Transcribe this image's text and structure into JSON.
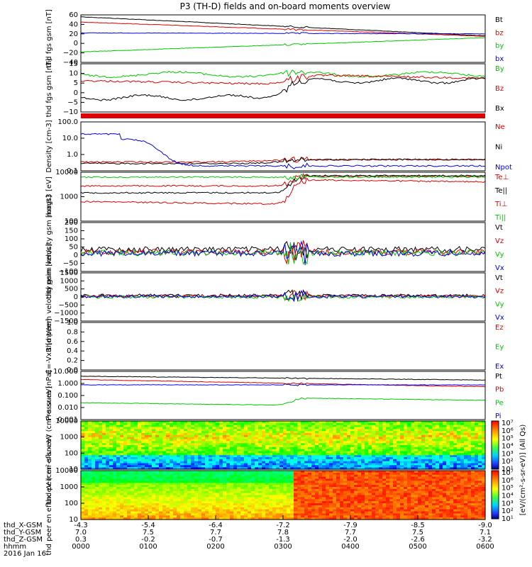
{
  "title": "P3 (TH-D) fields and on-board moments overview",
  "colors": {
    "black": "#000000",
    "red": "#e00000",
    "green": "#00c800",
    "blue": "#0000e0"
  },
  "time_axis": {
    "ticks": [
      "0000",
      "0100",
      "0200",
      "0300",
      "0400",
      "0500",
      "0600"
    ],
    "rows": [
      {
        "label": "thd_X-GSM",
        "values": [
          "-4.3",
          "-5.4",
          "-6.4",
          "-7.2",
          "-7.9",
          "-8.5",
          "-9.0"
        ]
      },
      {
        "label": "thd_Y-GSM",
        "values": [
          "7.0",
          "7.5",
          "7.7",
          "7.8",
          "7.7",
          "7.5",
          "7.1"
        ]
      },
      {
        "label": "thd_Z-GSM",
        "values": [
          "0.3",
          "-0.2",
          "-0.7",
          "-1.3",
          "-2.0",
          "-2.6",
          "-3.2"
        ]
      },
      {
        "label": "hhmm",
        "values": [
          "0000",
          "0100",
          "0200",
          "0300",
          "0400",
          "0500",
          "0600"
        ]
      }
    ],
    "date": "2016 Jan 16"
  },
  "colorbar": {
    "ticks": [
      "10⁷",
      "10⁶",
      "10⁵",
      "10⁴",
      "10³",
      "10²",
      "10¹"
    ],
    "label": "[eV/(cm²-s-sr-eV)] (All Qs)"
  },
  "chart_data": [
    {
      "type": "line",
      "panel": "fgs_gsm_mag",
      "ylabel": "thd fgs gsm [nT]",
      "ylim": [
        -40,
        60
      ],
      "yticks": [
        "60",
        "40",
        "20",
        "0",
        "−20",
        "−40"
      ],
      "series": [
        {
          "name": "Bt"
        },
        {
          "name": "bz"
        },
        {
          "name": "by"
        },
        {
          "name": "bx"
        }
      ]
    },
    {
      "type": "line",
      "panel": "fgs_gsm_small",
      "ylabel": "thd fgs gsm [nT]",
      "ylim": [
        -15,
        15
      ],
      "yticks": [
        "15",
        "10",
        "5",
        "0",
        "−5",
        "−10"
      ],
      "series": [
        {
          "name": "By"
        },
        {
          "name": "Bz"
        },
        {
          "name": "Bx"
        }
      ]
    },
    {
      "type": "line",
      "panel": "density",
      "ylabel": "Density [cm-3]",
      "log": true,
      "ylim": [
        0.1,
        100
      ],
      "yticks": [
        "100.0",
        "10.0",
        "1.0",
        "0.1"
      ],
      "series": [
        {
          "name": "Ne"
        },
        {
          "name": "Ni"
        },
        {
          "name": "Npot"
        }
      ]
    },
    {
      "type": "line",
      "panel": "temperature",
      "ylabel": "magt3 [eV]",
      "log": true,
      "ylim": [
        10,
        10000
      ],
      "yticks": [
        "10000",
        "1000",
        "100"
      ],
      "series": [
        {
          "name": "Te⊥"
        },
        {
          "name": "Te||"
        },
        {
          "name": "Ti⊥"
        },
        {
          "name": "Ti||"
        }
      ]
    },
    {
      "type": "line",
      "panel": "peim_velocity",
      "ylabel": "thd peim velocity gsm [km/s]",
      "ylim": [
        -100,
        200
      ],
      "yticks": [
        "200",
        "150",
        "100",
        "50",
        "0",
        "−50",
        "−100"
      ],
      "series": [
        {
          "name": "Vt"
        },
        {
          "name": "Vz"
        },
        {
          "name": "Vy"
        },
        {
          "name": "Vx"
        }
      ]
    },
    {
      "type": "line",
      "panel": "peem_velocity",
      "ylabel": "thd peem velocity gsm [km/s]",
      "ylim": [
        -1500,
        1500
      ],
      "yticks": [
        "1500",
        "1000",
        "500",
        "0",
        "−500",
        "−1000",
        "−1500"
      ],
      "series": [
        {
          "name": "Vt"
        },
        {
          "name": "Vz"
        },
        {
          "name": "Vy"
        },
        {
          "name": "Vx"
        }
      ]
    },
    {
      "type": "line",
      "panel": "efield",
      "ylabel": "E=-VxB [mV/m]",
      "ylim": [
        0,
        1
      ],
      "yticks": [
        "1.0",
        "0.8",
        "0.6",
        "0.4",
        "0.2",
        "0.0"
      ],
      "series": [
        {
          "name": "Ez"
        },
        {
          "name": "Ey"
        },
        {
          "name": "Ex"
        }
      ]
    },
    {
      "type": "line",
      "panel": "pressure",
      "ylabel": "Pressure [nPa]",
      "log": true,
      "ylim": [
        0.001,
        10
      ],
      "yticks": [
        "10.000",
        "1.000",
        "0.100",
        "0.010",
        "0.001"
      ],
      "series": [
        {
          "name": "Pt"
        },
        {
          "name": "Pb"
        },
        {
          "name": "Pe"
        },
        {
          "name": "Pi"
        }
      ]
    },
    {
      "type": "heatmap",
      "panel": "peir_spectrogram",
      "ylabel": "thd peir en eflux eV (cm²-s-sr-eV)",
      "log": true,
      "ylim": [
        5,
        20000
      ],
      "yticks": [
        "10000",
        "1000",
        "100",
        "10"
      ]
    },
    {
      "type": "heatmap",
      "panel": "peer_spectrogram",
      "ylabel": "thd peer en eflux eV (cm²-s-sr-eV)",
      "log": true,
      "ylim": [
        5,
        20000
      ],
      "yticks": [
        "10000",
        "1000",
        "100",
        "10"
      ]
    }
  ]
}
